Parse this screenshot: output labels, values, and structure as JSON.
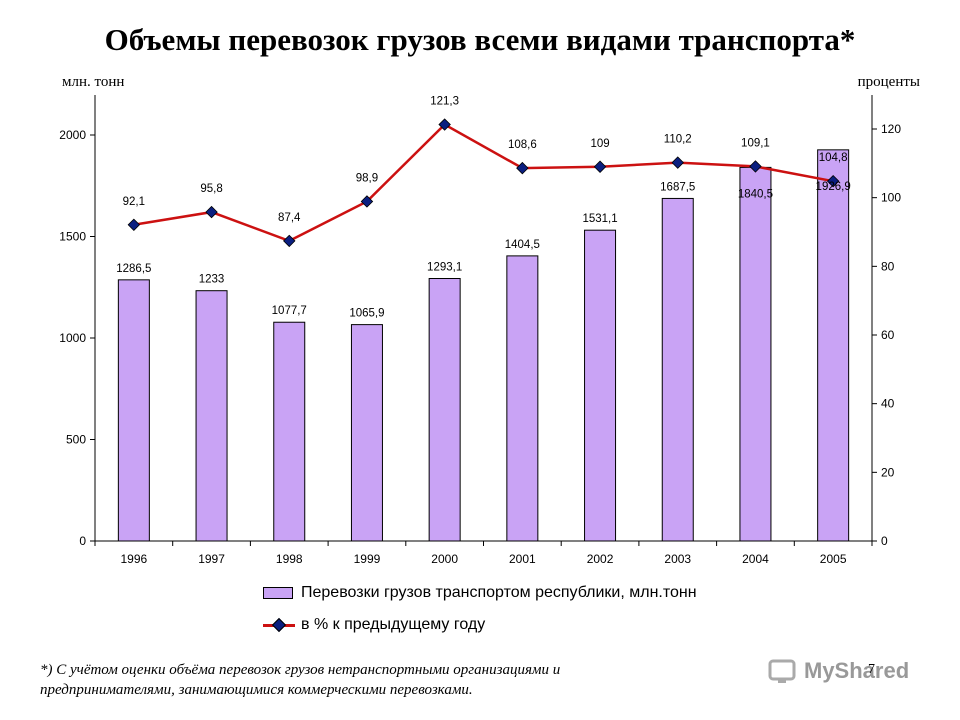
{
  "title": "Объемы перевозок грузов всеми видами транспорта*",
  "unit_left": "млн. тонн",
  "unit_right": "проценты",
  "legend": {
    "bars": "Перевозки грузов транспортом республики, млн.тонн",
    "line": "в % к предыдущему году"
  },
  "footnote": {
    "line1": "*) С учётом оценки объёма перевозок грузов нетранспортными организациями и",
    "line2": "предпринимателями, занимающимися коммерческими перевозками."
  },
  "page_number": "7",
  "watermark": "MyShared",
  "chart_data": {
    "type": "bar",
    "categories": [
      "1996",
      "1997",
      "1998",
      "1999",
      "2000",
      "2001",
      "2002",
      "2003",
      "2004",
      "2005"
    ],
    "series": [
      {
        "name": "Перевозки грузов транспортом республики, млн.тонн",
        "type": "bar",
        "axis": "left",
        "values": [
          1286.5,
          1233,
          1077.7,
          1065.9,
          1293.1,
          1404.5,
          1531.1,
          1687.5,
          1840.5,
          1926.9
        ],
        "labels": [
          "1286,5",
          "1233",
          "1077,7",
          "1065,9",
          "1293,1",
          "1404,5",
          "1531,1",
          "1687,5",
          "1840,5",
          "1926,9"
        ]
      },
      {
        "name": "в % к предыдущему году",
        "type": "line",
        "axis": "right",
        "values": [
          92.1,
          95.8,
          87.4,
          98.9,
          121.3,
          108.6,
          109,
          110.2,
          109.1,
          104.8
        ],
        "labels": [
          "92,1",
          "95,8",
          "87,4",
          "98,9",
          "121,3",
          "108,6",
          "109",
          "110,2",
          "109,1",
          "104,8"
        ]
      }
    ],
    "y_left": {
      "range": [
        0,
        2000
      ],
      "ticks": [
        "0",
        "500",
        "1000",
        "1500",
        "2000"
      ]
    },
    "y_right": {
      "range": [
        0,
        120
      ],
      "ticks": [
        "0",
        "20",
        "40",
        "60",
        "80",
        "100",
        "120"
      ]
    },
    "grid": false,
    "legend_position": "bottom",
    "colors": {
      "bar": "#c9a3f5",
      "line": "#cc1111",
      "marker": "#0b1f80"
    }
  }
}
